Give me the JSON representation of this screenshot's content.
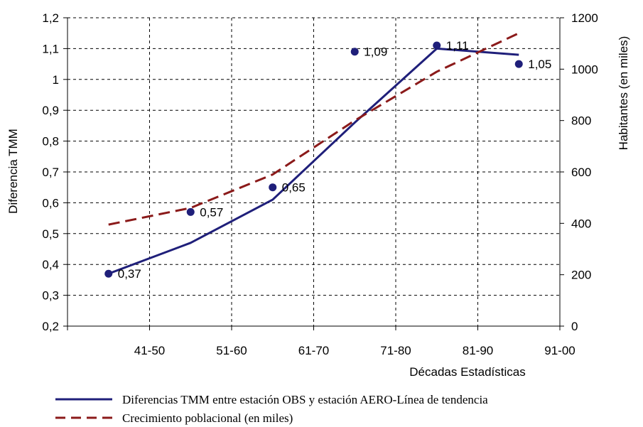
{
  "chart_data": {
    "type": "line",
    "categories": [
      "41-50",
      "51-60",
      "61-70",
      "71-80",
      "81-90",
      "91-00"
    ],
    "xlabel": "Décadas Estadísticas",
    "ylabel": "Diferencia TMM",
    "y2label": "Habitantes (en miles)",
    "ylim": [
      0.2,
      1.2
    ],
    "y2lim": [
      0,
      1200
    ],
    "yticks": [
      "0,2",
      "0,3",
      "0,4",
      "0,5",
      "0,6",
      "0,7",
      "0,8",
      "0,9",
      "1",
      "1,1",
      "1,2"
    ],
    "y2ticks": [
      "0",
      "200",
      "400",
      "600",
      "800",
      "1000",
      "1200"
    ],
    "grid": "dashed",
    "legend_position": "bottom",
    "points": {
      "x": [
        0.5,
        1.5,
        2.5,
        3.5,
        4.5,
        5.5
      ],
      "values": [
        0.37,
        0.57,
        0.65,
        1.09,
        1.11,
        1.05
      ],
      "labels": [
        "0,37",
        "0,57",
        "0,65",
        "1,09",
        "1,11",
        "1,05"
      ],
      "color": "#1f1f7a"
    },
    "series": [
      {
        "name": "Diferencias TMM entre estación OBS y estación AERO-Línea de tendencia",
        "axis": "left",
        "style": "solid",
        "color": "#1f1f7a",
        "x": [
          0.5,
          1.5,
          2.5,
          3.5,
          4.5,
          5.5
        ],
        "values": [
          0.37,
          0.47,
          0.61,
          0.86,
          1.1,
          1.08
        ]
      },
      {
        "name": "Crecimiento poblacional (en miles)",
        "axis": "right",
        "style": "dashed",
        "color": "#8b1a1a",
        "x": [
          0.5,
          1.5,
          2.5,
          3.5,
          4.5,
          5.5
        ],
        "values": [
          395,
          460,
          590,
          800,
          990,
          1140
        ]
      }
    ]
  }
}
